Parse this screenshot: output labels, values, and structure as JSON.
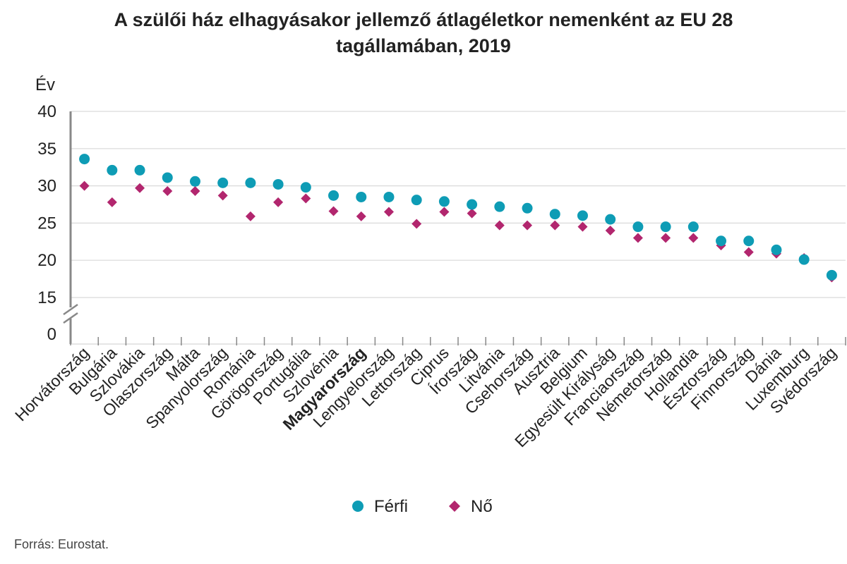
{
  "title": {
    "line1": "A szülői ház elhagyásakor jellemző átlagéletkor nemenként az EU 28",
    "line2": "tagállamában, 2019"
  },
  "source": "Forrás: Eurostat.",
  "colors": {
    "ferfi": "#0e9cb5",
    "no": "#b2266e",
    "grid": "#d9d9d9",
    "axis": "#888888"
  },
  "chart_data": {
    "type": "scatter",
    "ylabel": "Év",
    "yticks": [
      "40",
      "35",
      "30",
      "25",
      "20",
      "15",
      "0"
    ],
    "axis_break": "15-0",
    "ylim": [
      15,
      40
    ],
    "highlight_category": "Magyarország",
    "categories": [
      "Horvátország",
      "Bulgária",
      "Szlovákia",
      "Olaszország",
      "Málta",
      "Spanyolország",
      "Románia",
      "Görögország",
      "Portugália",
      "Szlovénia",
      "Magyarország",
      "Lengyelország",
      "Lettország",
      "Ciprus",
      "Írország",
      "Litvánia",
      "Csehország",
      "Ausztria",
      "Belgium",
      "Egyesült Királyság",
      "Franciaország",
      "Németország",
      "Hollandia",
      "Észtország",
      "Finnország",
      "Dánia",
      "Luxemburg",
      "Svédország"
    ],
    "series": [
      {
        "name": "Férfi",
        "marker": "circle",
        "values": [
          33.6,
          32.1,
          32.1,
          31.1,
          30.6,
          30.4,
          30.4,
          30.2,
          29.8,
          28.7,
          28.5,
          28.5,
          28.1,
          27.9,
          27.5,
          27.2,
          27.0,
          26.2,
          26.0,
          25.5,
          24.5,
          24.5,
          24.5,
          22.6,
          22.6,
          21.4,
          20.1,
          18.0
        ]
      },
      {
        "name": "Nő",
        "marker": "diamond",
        "values": [
          30.0,
          27.8,
          29.7,
          29.3,
          29.3,
          28.7,
          25.9,
          27.8,
          28.3,
          26.6,
          25.9,
          26.5,
          24.9,
          26.5,
          26.3,
          24.7,
          24.7,
          24.7,
          24.5,
          24.0,
          23.0,
          23.0,
          23.0,
          22.0,
          21.1,
          20.9,
          20.3,
          17.7
        ]
      }
    ]
  }
}
